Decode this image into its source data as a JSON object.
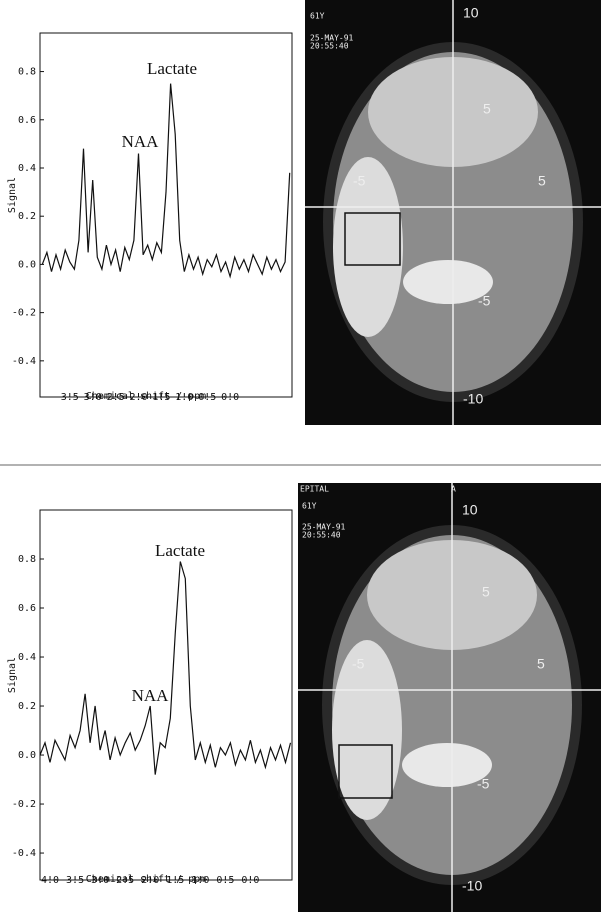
{
  "chart_data": [
    {
      "type": "line",
      "color": "#111",
      "x": [
        4.1,
        4.0,
        3.9,
        3.8,
        3.7,
        3.6,
        3.5,
        3.4,
        3.3,
        3.2,
        3.1,
        3.0,
        2.9,
        2.8,
        2.7,
        2.6,
        2.5,
        2.4,
        2.3,
        2.2,
        2.1,
        2.0,
        1.9,
        1.8,
        1.7,
        1.6,
        1.5,
        1.4,
        1.3,
        1.2,
        1.1,
        1.0,
        0.9,
        0.8,
        0.7,
        0.6,
        0.5,
        0.4,
        0.3,
        0.2,
        0.1,
        0.0,
        -0.1,
        -0.2,
        -0.3,
        -0.4,
        -0.5,
        -0.6,
        -0.7,
        -0.8,
        -0.9,
        -1.0,
        -1.1,
        -1.2,
        -1.3
      ],
      "values": [
        0.0,
        0.05,
        -0.03,
        0.04,
        -0.02,
        0.06,
        0.01,
        -0.02,
        0.1,
        0.48,
        0.05,
        0.35,
        0.03,
        -0.02,
        0.08,
        0.0,
        0.06,
        -0.03,
        0.07,
        0.02,
        0.1,
        0.46,
        0.04,
        0.08,
        0.02,
        0.09,
        0.05,
        0.3,
        0.75,
        0.54,
        0.1,
        -0.03,
        0.04,
        -0.02,
        0.03,
        -0.04,
        0.02,
        -0.01,
        0.04,
        -0.03,
        0.01,
        -0.05,
        0.03,
        -0.02,
        0.02,
        -0.03,
        0.04,
        0.0,
        -0.04,
        0.03,
        -0.02,
        0.02,
        -0.03,
        0.01,
        0.38
      ],
      "xlim": [
        4.15,
        -1.35
      ],
      "ylim": [
        -0.55,
        0.96
      ],
      "xticks": [
        3.5,
        {
          "value": 3,
          "label": "3.0"
        },
        2.5,
        {
          "value": 2,
          "label": "2.0"
        },
        1.5,
        {
          "value": 1,
          "label": "1.0"
        },
        0.5,
        {
          "value": 0,
          "label": "0.0"
        }
      ],
      "yticks": [
        -0.4,
        -0.2,
        {
          "value": 0,
          "label": "0.0"
        },
        0.2,
        0.4,
        0.6,
        0.8
      ],
      "x_label": "Chemical shift / ppm",
      "y_label": "Signal",
      "annotations": [
        "Lactate",
        "NAA"
      ]
    },
    {
      "type": "line",
      "color": "#111",
      "x": [
        4.2,
        4.1,
        4.0,
        3.9,
        3.8,
        3.7,
        3.6,
        3.5,
        3.4,
        3.3,
        3.2,
        3.1,
        3.0,
        2.9,
        2.8,
        2.7,
        2.6,
        2.5,
        2.4,
        2.3,
        2.2,
        2.1,
        2.0,
        1.9,
        1.8,
        1.7,
        1.6,
        1.5,
        1.4,
        1.3,
        1.2,
        1.1,
        1.0,
        0.9,
        0.8,
        0.7,
        0.6,
        0.5,
        0.4,
        0.3,
        0.2,
        0.1,
        0.0,
        -0.1,
        -0.2,
        -0.3,
        -0.4,
        -0.5,
        -0.6,
        -0.7,
        -0.8
      ],
      "values": [
        0.0,
        0.05,
        -0.03,
        0.06,
        0.02,
        -0.02,
        0.08,
        0.03,
        0.1,
        0.25,
        0.05,
        0.2,
        0.02,
        0.1,
        -0.02,
        0.07,
        0.0,
        0.05,
        0.09,
        0.02,
        0.06,
        0.12,
        0.2,
        -0.08,
        0.05,
        0.03,
        0.15,
        0.5,
        0.79,
        0.72,
        0.2,
        -0.02,
        0.05,
        -0.03,
        0.04,
        -0.05,
        0.03,
        0.0,
        0.05,
        -0.04,
        0.02,
        -0.02,
        0.06,
        -0.03,
        0.02,
        -0.05,
        0.03,
        -0.02,
        0.04,
        -0.03,
        0.05
      ],
      "xlim": [
        4.2,
        -0.83
      ],
      "ylim": [
        -0.51,
        1.0
      ],
      "xticks": [
        {
          "value": 4,
          "label": "4.0"
        },
        3.5,
        {
          "value": 3,
          "label": "3.0"
        },
        2.5,
        {
          "value": 2,
          "label": "2.0"
        },
        1.5,
        {
          "value": 1,
          "label": "1.0"
        },
        0.5,
        {
          "value": 0,
          "label": "0.0"
        }
      ],
      "yticks": [
        -0.4,
        -0.2,
        {
          "value": 0,
          "label": "0.0"
        },
        0.2,
        0.4,
        0.6,
        0.8
      ],
      "x_label": "Chemical shift / ppm",
      "y_label": "Signal",
      "annotations": [
        "Lactate",
        "NAA"
      ]
    }
  ],
  "images": [
    {
      "labels": [
        "61Y",
        "25-MAY-91",
        "20:55:40"
      ],
      "scale": [
        "10",
        "5",
        "-5",
        "5",
        "-5",
        "-10"
      ]
    },
    {
      "labels": [
        "EPITAL",
        "A",
        "61Y",
        "25-MAY-91",
        "20:55:40"
      ],
      "scale": [
        "10",
        "5",
        "-5",
        "5",
        "-5",
        "-10"
      ]
    }
  ]
}
